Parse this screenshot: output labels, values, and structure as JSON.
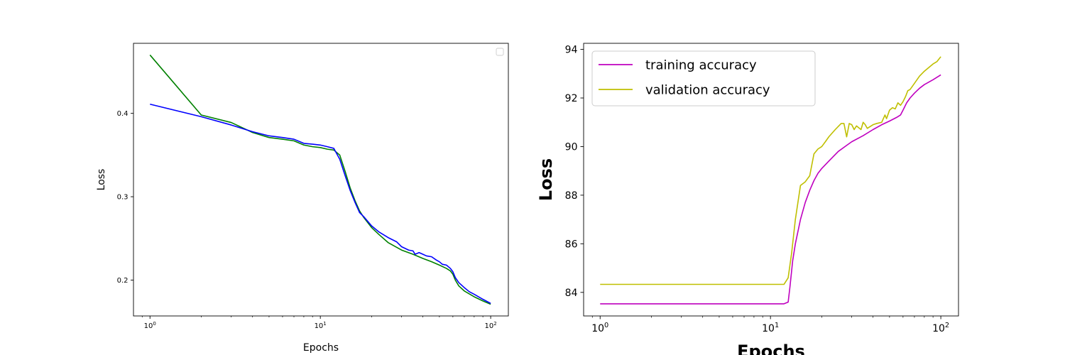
{
  "chart_data": [
    {
      "type": "line",
      "xscale": "log",
      "xlim": [
        0.8,
        127
      ],
      "ylim": [
        0.157,
        0.484
      ],
      "xlabel": "Epochs",
      "ylabel": "Loss",
      "x_ticks": [
        1,
        10,
        100
      ],
      "x_tick_labels": [
        {
          "base": "10",
          "exp": "0"
        },
        {
          "base": "10",
          "exp": "1"
        },
        {
          "base": "10",
          "exp": "2"
        }
      ],
      "y_ticks": [
        0.2,
        0.3,
        0.4
      ],
      "y_tick_labels": [
        "0.2",
        "0.3",
        "0.4"
      ],
      "grid": false,
      "legend": "upper right (empty)",
      "series": [
        {
          "color": "#008000",
          "x": [
            1,
            2,
            3,
            4,
            5,
            6,
            7,
            8,
            9,
            10,
            11,
            12,
            13,
            14,
            15,
            16,
            17,
            18,
            20,
            22,
            25,
            30,
            35,
            40,
            45,
            50,
            55,
            58,
            60,
            62,
            65,
            70,
            80,
            90,
            100
          ],
          "y": [
            0.47,
            0.398,
            0.389,
            0.377,
            0.371,
            0.369,
            0.367,
            0.362,
            0.36,
            0.359,
            0.357,
            0.356,
            0.35,
            0.33,
            0.31,
            0.295,
            0.283,
            0.275,
            0.263,
            0.255,
            0.245,
            0.236,
            0.231,
            0.226,
            0.222,
            0.218,
            0.214,
            0.211,
            0.207,
            0.2,
            0.193,
            0.187,
            0.18,
            0.175,
            0.171
          ]
        },
        {
          "color": "#0000ff",
          "x": [
            1,
            2,
            3,
            4,
            5,
            6,
            7,
            8,
            9,
            10,
            11,
            12,
            13,
            14,
            15,
            16,
            17,
            18,
            20,
            22,
            25,
            28,
            30,
            33,
            35,
            36,
            38,
            40,
            42,
            45,
            48,
            50,
            52,
            55,
            58,
            60,
            62,
            65,
            70,
            75,
            80,
            90,
            100
          ],
          "y": [
            0.411,
            0.396,
            0.386,
            0.378,
            0.373,
            0.371,
            0.369,
            0.364,
            0.363,
            0.362,
            0.36,
            0.358,
            0.345,
            0.325,
            0.307,
            0.293,
            0.281,
            0.276,
            0.265,
            0.258,
            0.251,
            0.246,
            0.24,
            0.236,
            0.235,
            0.231,
            0.233,
            0.231,
            0.229,
            0.228,
            0.224,
            0.222,
            0.219,
            0.218,
            0.214,
            0.21,
            0.203,
            0.197,
            0.191,
            0.186,
            0.183,
            0.177,
            0.172
          ]
        }
      ]
    },
    {
      "type": "line",
      "xscale": "log",
      "xlim": [
        0.8,
        127
      ],
      "ylim": [
        83.03,
        94.25
      ],
      "xlabel": "Epochs",
      "ylabel": "Loss",
      "x_ticks": [
        1,
        10,
        100
      ],
      "x_tick_labels": [
        {
          "base": "10",
          "exp": "0"
        },
        {
          "base": "10",
          "exp": "1"
        },
        {
          "base": "10",
          "exp": "2"
        }
      ],
      "y_ticks": [
        84,
        86,
        88,
        90,
        92,
        94
      ],
      "y_tick_labels": [
        "84",
        "86",
        "88",
        "90",
        "92",
        "94"
      ],
      "grid": false,
      "legend": "upper left",
      "series": [
        {
          "name": "training accuracy",
          "color": "#bf00bf",
          "x": [
            1,
            2,
            5,
            10,
            12,
            12.7,
            13,
            13.5,
            14,
            15,
            16,
            17,
            18,
            19,
            20,
            22,
            25,
            28,
            30,
            35,
            40,
            45,
            50,
            55,
            58,
            60,
            63,
            66,
            70,
            75,
            80,
            90,
            100
          ],
          "y": [
            83.53,
            83.53,
            83.53,
            83.53,
            83.53,
            83.6,
            84.2,
            85.3,
            86.0,
            87.0,
            87.7,
            88.2,
            88.6,
            88.9,
            89.1,
            89.4,
            89.8,
            90.05,
            90.2,
            90.45,
            90.7,
            90.9,
            91.05,
            91.2,
            91.3,
            91.5,
            91.8,
            92.0,
            92.2,
            92.4,
            92.55,
            92.75,
            92.95
          ]
        },
        {
          "name": "validation accuracy",
          "color": "#bfbf00",
          "x": [
            1,
            2,
            5,
            10,
            12,
            12.7,
            13.3,
            14,
            15,
            16,
            17,
            18,
            18.5,
            19,
            20,
            21,
            22,
            24,
            26,
            27,
            28,
            29,
            30,
            31,
            32,
            34,
            35,
            36,
            37,
            40,
            42,
            45,
            47,
            48,
            50,
            52,
            54,
            56,
            58,
            60,
            62,
            64,
            66,
            70,
            75,
            80,
            90,
            95,
            100
          ],
          "y": [
            84.33,
            84.33,
            84.33,
            84.33,
            84.33,
            84.6,
            85.6,
            87.0,
            88.4,
            88.55,
            88.8,
            89.7,
            89.8,
            89.9,
            90.0,
            90.2,
            90.4,
            90.7,
            90.95,
            90.95,
            90.4,
            90.95,
            90.9,
            90.7,
            90.85,
            90.7,
            91.0,
            90.9,
            90.75,
            90.9,
            90.95,
            91.0,
            91.3,
            91.15,
            91.5,
            91.6,
            91.55,
            91.8,
            91.7,
            91.85,
            92.05,
            92.3,
            92.35,
            92.6,
            92.9,
            93.1,
            93.4,
            93.5,
            93.7
          ]
        }
      ]
    }
  ]
}
